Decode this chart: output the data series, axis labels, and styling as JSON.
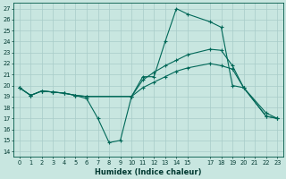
{
  "xlabel": "Humidex (Indice chaleur)",
  "ylabel": "",
  "bg_color": "#c8e6e0",
  "grid_color": "#a8ccc8",
  "line_color": "#006858",
  "xlim": [
    -0.5,
    23.5
  ],
  "ylim": [
    13.5,
    27.5
  ],
  "yticks": [
    14,
    15,
    16,
    17,
    18,
    19,
    20,
    21,
    22,
    23,
    24,
    25,
    26,
    27
  ],
  "xticks": [
    0,
    1,
    2,
    3,
    4,
    5,
    6,
    7,
    8,
    9,
    10,
    11,
    12,
    13,
    14,
    15,
    17,
    18,
    19,
    20,
    21,
    22,
    23
  ],
  "xtick_labels": [
    "0",
    "1",
    "2",
    "3",
    "4",
    "5",
    "6",
    "7",
    "8",
    "9",
    "10",
    "11",
    "12",
    "13",
    "14",
    "15",
    "17",
    "18",
    "19",
    "20",
    "21",
    "22",
    "23"
  ],
  "series": [
    {
      "x": [
        0,
        1,
        2,
        3,
        4,
        5,
        6,
        7,
        8,
        9,
        10,
        11,
        12,
        13,
        14,
        15,
        17,
        18,
        19,
        20,
        22,
        23
      ],
      "y": [
        19.8,
        19.1,
        19.5,
        19.4,
        19.3,
        19.1,
        18.8,
        17.0,
        14.8,
        15.0,
        19.0,
        20.8,
        20.8,
        24.0,
        27.0,
        26.5,
        25.8,
        25.3,
        20.0,
        19.8,
        17.5,
        17.0
      ]
    },
    {
      "x": [
        0,
        1,
        2,
        3,
        4,
        5,
        6,
        10,
        11,
        12,
        13,
        14,
        15,
        17,
        18,
        19,
        20,
        22,
        23
      ],
      "y": [
        19.8,
        19.1,
        19.5,
        19.4,
        19.3,
        19.1,
        19.0,
        19.0,
        20.5,
        21.2,
        21.8,
        22.3,
        22.8,
        23.3,
        23.2,
        21.8,
        19.8,
        17.2,
        17.0
      ]
    },
    {
      "x": [
        0,
        1,
        2,
        3,
        4,
        5,
        6,
        10,
        11,
        12,
        13,
        14,
        15,
        17,
        18,
        19,
        20,
        22,
        23
      ],
      "y": [
        19.8,
        19.1,
        19.5,
        19.4,
        19.3,
        19.1,
        19.0,
        19.0,
        19.8,
        20.3,
        20.8,
        21.3,
        21.6,
        22.0,
        21.8,
        21.5,
        19.8,
        17.2,
        17.0
      ]
    }
  ]
}
